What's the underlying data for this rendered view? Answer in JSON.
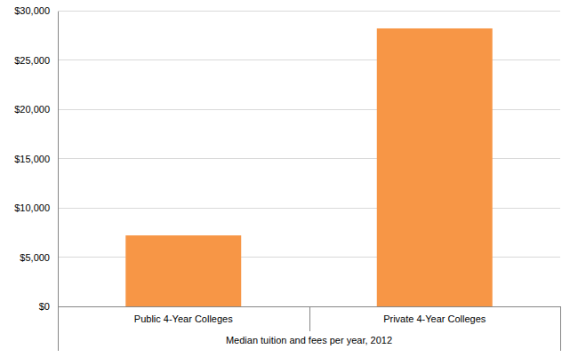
{
  "chart_data": {
    "type": "bar",
    "categories": [
      "Public 4-Year Colleges",
      "Private 4-Year Colleges"
    ],
    "values": [
      7200,
      28200
    ],
    "color": "#f79646",
    "xlabel": "Median tuition and fees per year, 2012",
    "ylim": [
      0,
      30000
    ],
    "yticks": [
      {
        "value": 0,
        "label": "$0"
      },
      {
        "value": 5000,
        "label": "$5,000"
      },
      {
        "value": 10000,
        "label": "$10,000"
      },
      {
        "value": 15000,
        "label": "$15,000"
      },
      {
        "value": 20000,
        "label": "$20,000"
      },
      {
        "value": 25000,
        "label": "$25,000"
      },
      {
        "value": 30000,
        "label": "$30,000"
      }
    ],
    "grid": true
  }
}
